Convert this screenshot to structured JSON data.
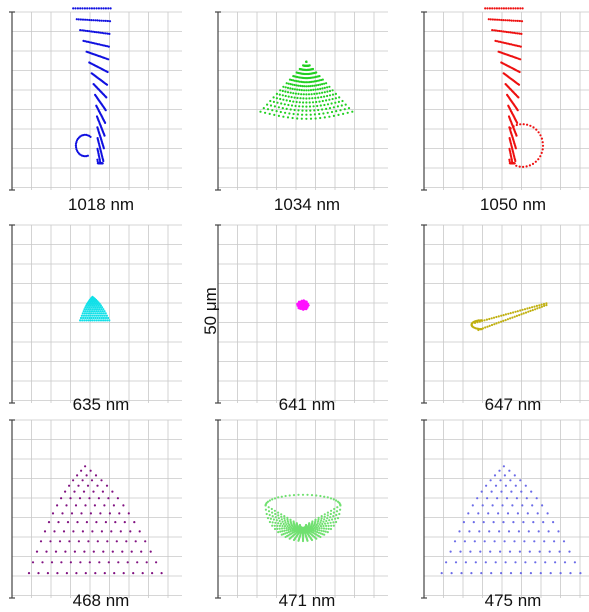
{
  "scale_bar": {
    "label": "50 μm"
  },
  "chart_data": [
    {
      "type": "scatter",
      "wavelength_label": "1018 nm",
      "color": "#1010e0",
      "shape": "blade",
      "x_range": [
        0,
        10
      ],
      "y_range": [
        0,
        10
      ]
    },
    {
      "type": "scatter",
      "wavelength_label": "1034 nm",
      "color": "#22d022",
      "shape": "cone",
      "x_range": [
        0,
        10
      ],
      "y_range": [
        0,
        10
      ]
    },
    {
      "type": "scatter",
      "wavelength_label": "1050 nm",
      "color": "#ee1010",
      "shape": "blade_hook",
      "x_range": [
        0,
        10
      ],
      "y_range": [
        0,
        10
      ]
    },
    {
      "type": "scatter",
      "wavelength_label": "635 nm",
      "color": "#10e0e8",
      "shape": "small_triangle",
      "x_range": [
        0,
        10
      ],
      "y_range": [
        0,
        10
      ]
    },
    {
      "type": "scatter",
      "wavelength_label": "641 nm",
      "color": "#ff10ff",
      "shape": "dot",
      "x_range": [
        0,
        10
      ],
      "y_range": [
        0,
        10
      ]
    },
    {
      "type": "scatter",
      "wavelength_label": "647 nm",
      "color": "#c0b010",
      "shape": "small_blade",
      "x_range": [
        0,
        10
      ],
      "y_range": [
        0,
        10
      ]
    },
    {
      "type": "scatter",
      "wavelength_label": "468 nm",
      "color": "#801080",
      "shape": "triangle",
      "x_range": [
        0,
        10
      ],
      "y_range": [
        0,
        10
      ]
    },
    {
      "type": "scatter",
      "wavelength_label": "471 nm",
      "color": "#70e070",
      "shape": "dome",
      "x_range": [
        0,
        10
      ],
      "y_range": [
        0,
        10
      ]
    },
    {
      "type": "scatter",
      "wavelength_label": "475 nm",
      "color": "#6a6ae8",
      "shape": "triangle_wide",
      "x_range": [
        0,
        10
      ],
      "y_range": [
        0,
        10
      ]
    }
  ]
}
